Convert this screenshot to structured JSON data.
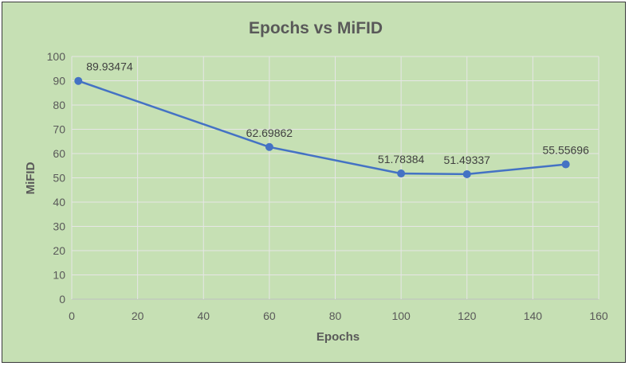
{
  "chart_data": {
    "type": "line",
    "title": "Epochs vs MiFID",
    "xlabel": "Epochs",
    "ylabel": "MiFID",
    "xlim": [
      0,
      160
    ],
    "ylim": [
      0,
      100
    ],
    "x_ticks": [
      0,
      20,
      40,
      60,
      80,
      100,
      120,
      140,
      160
    ],
    "y_ticks": [
      0,
      10,
      20,
      30,
      40,
      50,
      60,
      70,
      80,
      90,
      100
    ],
    "x_tick_labels": [
      "0",
      "20",
      "40",
      "60",
      "80",
      "100",
      "120",
      "140",
      "160"
    ],
    "y_tick_labels": [
      "0",
      "10",
      "20",
      "30",
      "40",
      "50",
      "60",
      "70",
      "80",
      "90",
      "100"
    ],
    "grid": true,
    "legend": "none",
    "series": [
      {
        "x": [
          2,
          60,
          100,
          120,
          150
        ],
        "values": [
          89.93474,
          62.69862,
          51.78384,
          51.49337,
          55.55696
        ],
        "labels": [
          "89.93474",
          "62.69862",
          "51.78384",
          "51.49337",
          "55.55696"
        ],
        "color": "#4472c4"
      }
    ],
    "background_color": "#c6e0b4"
  }
}
